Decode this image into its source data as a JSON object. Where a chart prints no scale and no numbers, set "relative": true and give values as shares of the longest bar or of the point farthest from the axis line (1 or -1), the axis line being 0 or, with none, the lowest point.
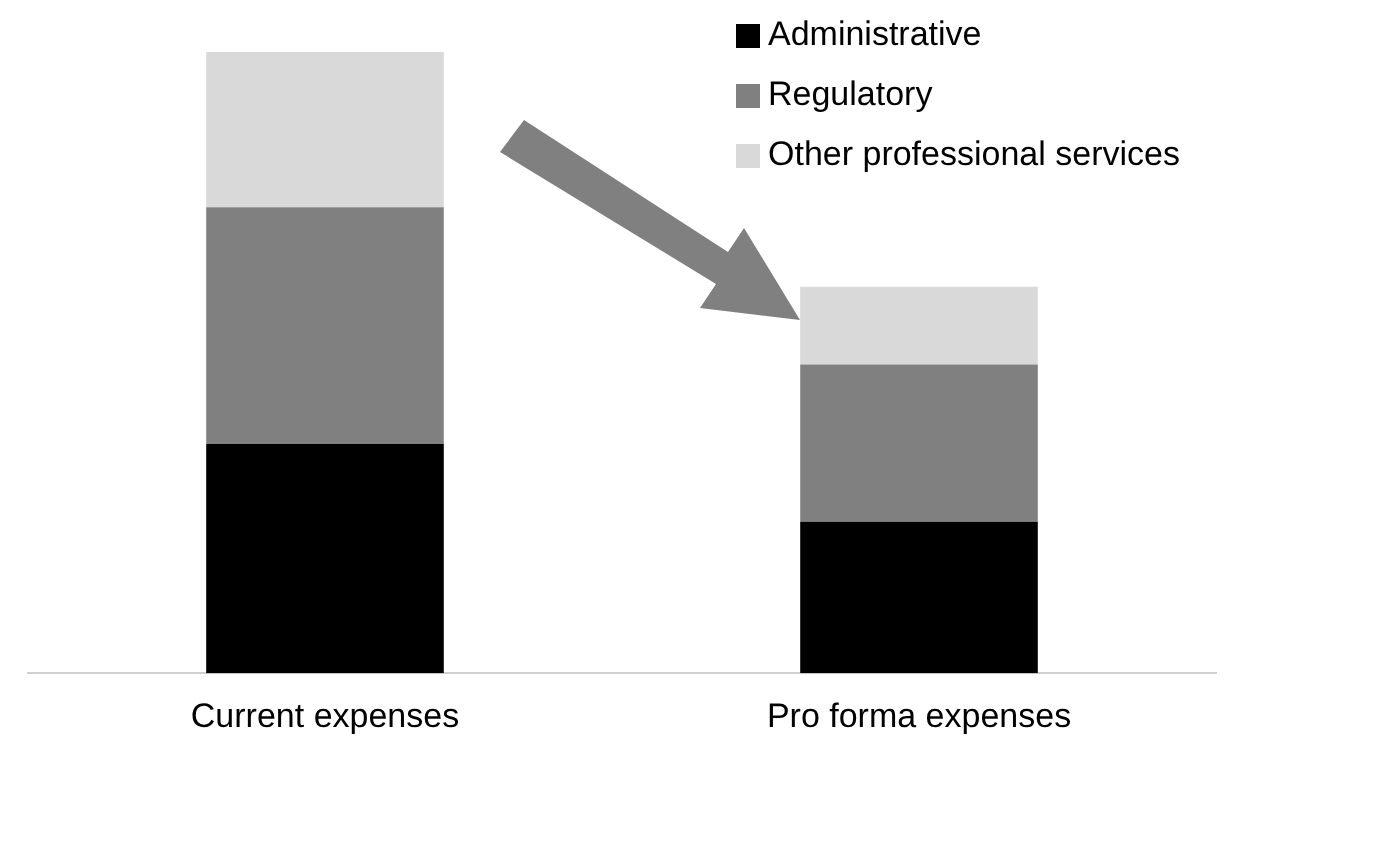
{
  "chart_data": {
    "type": "bar",
    "stacked": true,
    "relative": true,
    "legend": "top right",
    "categories": [
      "Current expenses",
      "Pro forma expenses"
    ],
    "series": [
      {
        "name": "Administrative",
        "color": "#000000",
        "values": [
          0.369,
          0.244
        ]
      },
      {
        "name": "Regulatory",
        "color": "#808080",
        "values": [
          0.381,
          0.253
        ]
      },
      {
        "name": "Other professional services",
        "color": "#d9d9d9",
        "values": [
          0.25,
          0.125
        ]
      }
    ]
  }
}
